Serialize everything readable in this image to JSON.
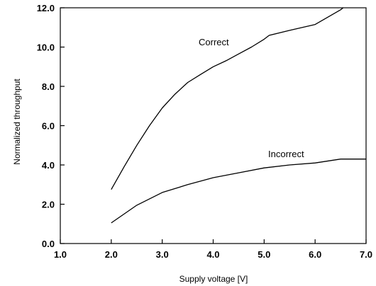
{
  "chart_data": {
    "type": "line",
    "xlabel": "Supply voltage [V]",
    "ylabel": "Normalized throughput",
    "xlim": [
      1.0,
      7.0
    ],
    "ylim": [
      0.0,
      12.0
    ],
    "x_ticks": [
      "1.0",
      "2.0",
      "3.0",
      "4.0",
      "5.0",
      "6.0",
      "7.0"
    ],
    "y_ticks": [
      "0.0",
      "2.0",
      "4.0",
      "6.0",
      "8.0",
      "10.0",
      "12.0"
    ],
    "grid": false,
    "series": [
      {
        "name": "Correct",
        "points": [
          [
            2.0,
            2.75
          ],
          [
            2.25,
            3.9
          ],
          [
            2.5,
            5.0
          ],
          [
            2.75,
            6.0
          ],
          [
            3.0,
            6.9
          ],
          [
            3.25,
            7.6
          ],
          [
            3.5,
            8.2
          ],
          [
            3.75,
            8.6
          ],
          [
            4.0,
            9.0
          ],
          [
            4.25,
            9.3
          ],
          [
            4.5,
            9.65
          ],
          [
            4.75,
            10.0
          ],
          [
            5.0,
            10.4
          ],
          [
            5.1,
            10.6
          ],
          [
            5.5,
            10.85
          ],
          [
            5.75,
            11.0
          ],
          [
            6.0,
            11.15
          ],
          [
            6.2,
            11.45
          ],
          [
            6.5,
            11.9
          ],
          [
            6.55,
            12.0
          ]
        ]
      },
      {
        "name": "Incorrect",
        "points": [
          [
            2.0,
            1.05
          ],
          [
            2.25,
            1.5
          ],
          [
            2.5,
            1.95
          ],
          [
            3.0,
            2.6
          ],
          [
            3.5,
            3.0
          ],
          [
            4.0,
            3.35
          ],
          [
            4.5,
            3.6
          ],
          [
            5.0,
            3.85
          ],
          [
            5.5,
            4.0
          ],
          [
            6.0,
            4.1
          ],
          [
            6.5,
            4.3
          ],
          [
            7.0,
            4.3
          ]
        ]
      }
    ]
  }
}
